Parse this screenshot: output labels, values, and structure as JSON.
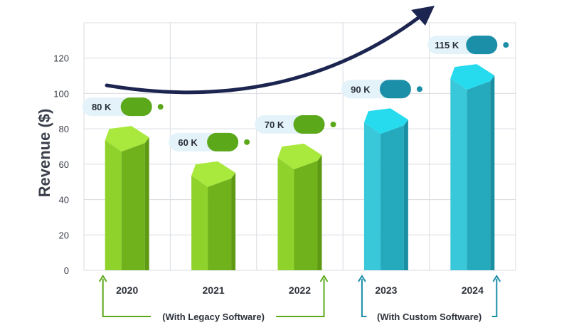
{
  "chart_data": {
    "type": "bar",
    "categories": [
      "2020",
      "2021",
      "2022",
      "2023",
      "2024"
    ],
    "values": [
      80,
      60,
      70,
      90,
      115
    ],
    "data_labels": [
      "80 K",
      "60 K",
      "70 K",
      "90 K",
      "115 K"
    ],
    "title": "",
    "xlabel": "",
    "ylabel": "Revenue ($)",
    "ylim": [
      0,
      140
    ],
    "yticks": [
      0,
      20,
      40,
      60,
      80,
      100,
      120
    ],
    "grid": true,
    "groups": [
      {
        "label": "(With Legacy Software)",
        "categories": [
          "2020",
          "2021",
          "2022"
        ],
        "color": "#5ba81a"
      },
      {
        "label": "(With Custom Software)",
        "categories": [
          "2023",
          "2024"
        ],
        "color": "#1b8ea8"
      }
    ],
    "trend_arrow": "rising"
  },
  "colors": {
    "legacy_bar": "#8dd42a",
    "custom_bar": "#34c9dc",
    "trend_arrow": "#1c2550",
    "grid": "#d9dce0"
  }
}
